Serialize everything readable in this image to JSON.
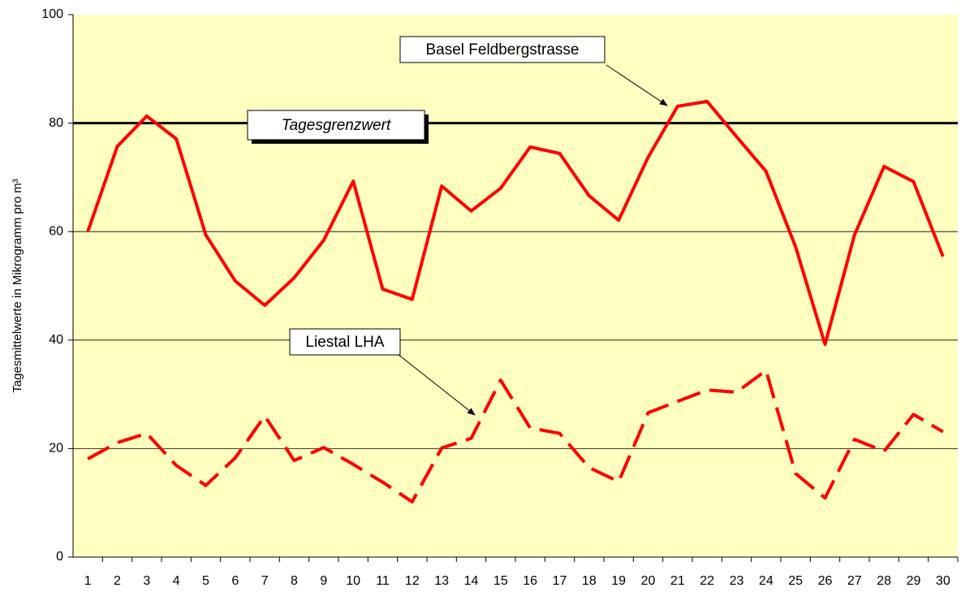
{
  "chart_data": {
    "type": "line",
    "y_label": "Tagesmittelwerte in Mikrogramm pro m³",
    "categories": [
      1,
      2,
      3,
      4,
      5,
      6,
      7,
      8,
      9,
      10,
      11,
      12,
      13,
      14,
      15,
      16,
      17,
      18,
      19,
      20,
      21,
      22,
      23,
      24,
      25,
      26,
      27,
      28,
      29,
      30
    ],
    "series": [
      {
        "name": "Basel Feldbergstrasse",
        "color": "#ff0000",
        "dash": false,
        "values": [
          60,
          75.7,
          81.3,
          77.1,
          59.4,
          50.9,
          46.4,
          51.5,
          58.4,
          69.3,
          49.4,
          47.5,
          68.4,
          63.8,
          68,
          75.6,
          74.4,
          66.6,
          62.1,
          73.7,
          83.1,
          84,
          77.5,
          71.1,
          57.2,
          39.2,
          59.4,
          72,
          69.2,
          55.4
        ]
      },
      {
        "name": "Liestal LHA",
        "color": "#ff0000",
        "dash": true,
        "values": [
          18.1,
          21.1,
          22.8,
          16.9,
          13.2,
          18.3,
          26,
          17.8,
          20.2,
          17.1,
          13.8,
          10.2,
          20.1,
          21.9,
          32.6,
          23.8,
          22.8,
          16.5,
          13.9,
          26.6,
          28.7,
          30.8,
          30.4,
          34.4,
          15.4,
          10.9,
          21.7,
          19.5,
          26.3,
          23.1
        ]
      }
    ],
    "threshold": {
      "value": 80,
      "label": "Tagesgrenzwert"
    },
    "ylim": [
      0,
      100
    ],
    "yticks": [
      0,
      20,
      40,
      60,
      80,
      100
    ],
    "grid": true,
    "plot_background": "#ffffc0"
  }
}
